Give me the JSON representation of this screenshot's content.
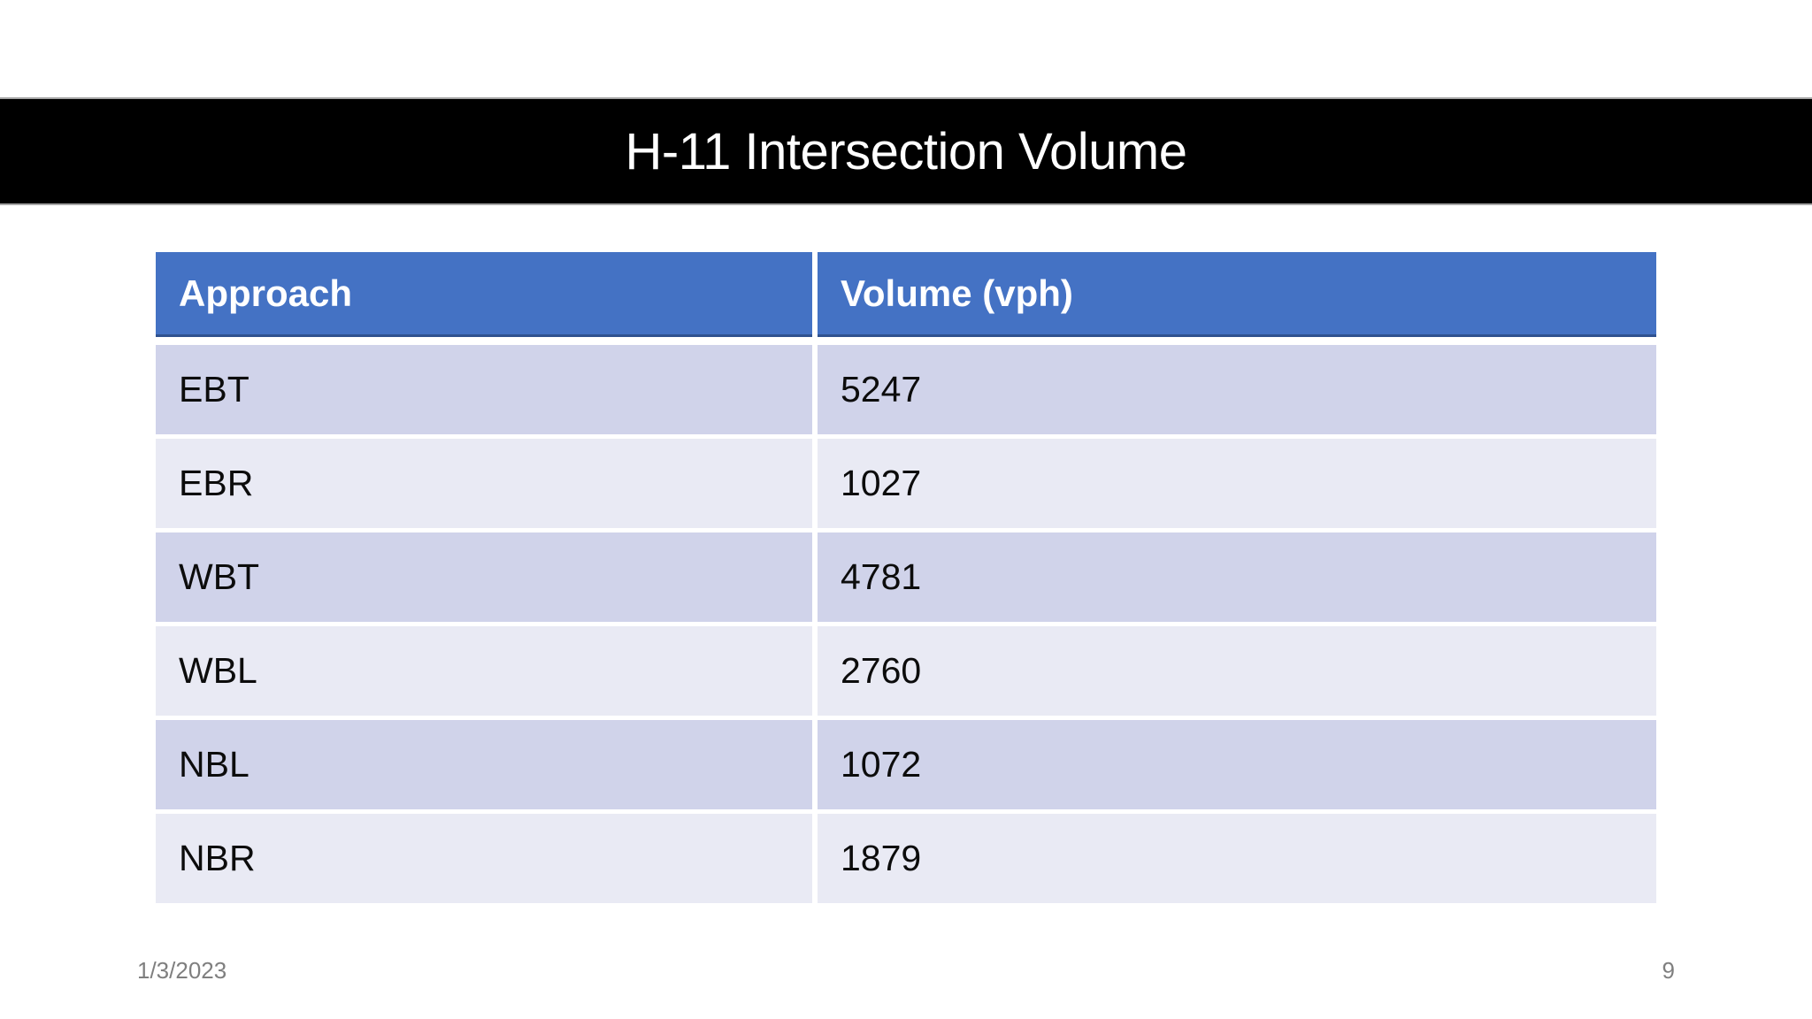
{
  "slide": {
    "title": "H-11 Intersection Volume",
    "footer": {
      "date": "1/3/2023",
      "page_number": "9"
    }
  },
  "table": {
    "columns": [
      "Approach",
      "Volume (vph)"
    ],
    "rows": [
      {
        "approach": "EBT",
        "volume": "5247"
      },
      {
        "approach": "EBR",
        "volume": "1027"
      },
      {
        "approach": "WBT",
        "volume": "4781"
      },
      {
        "approach": "WBL",
        "volume": "2760"
      },
      {
        "approach": "NBL",
        "volume": "1072"
      },
      {
        "approach": "NBR",
        "volume": "1879"
      }
    ]
  },
  "colors": {
    "banner_background": "#000000",
    "banner_text": "#ffffff",
    "header_blue": "#4472c4",
    "header_border": "#2f528f",
    "band_dark": "#d0d3ea",
    "band_light": "#e9eaf4",
    "footer_text": "#7f7f7f",
    "cell_text": "#0c0c0c",
    "slide_background": "#ffffff"
  }
}
